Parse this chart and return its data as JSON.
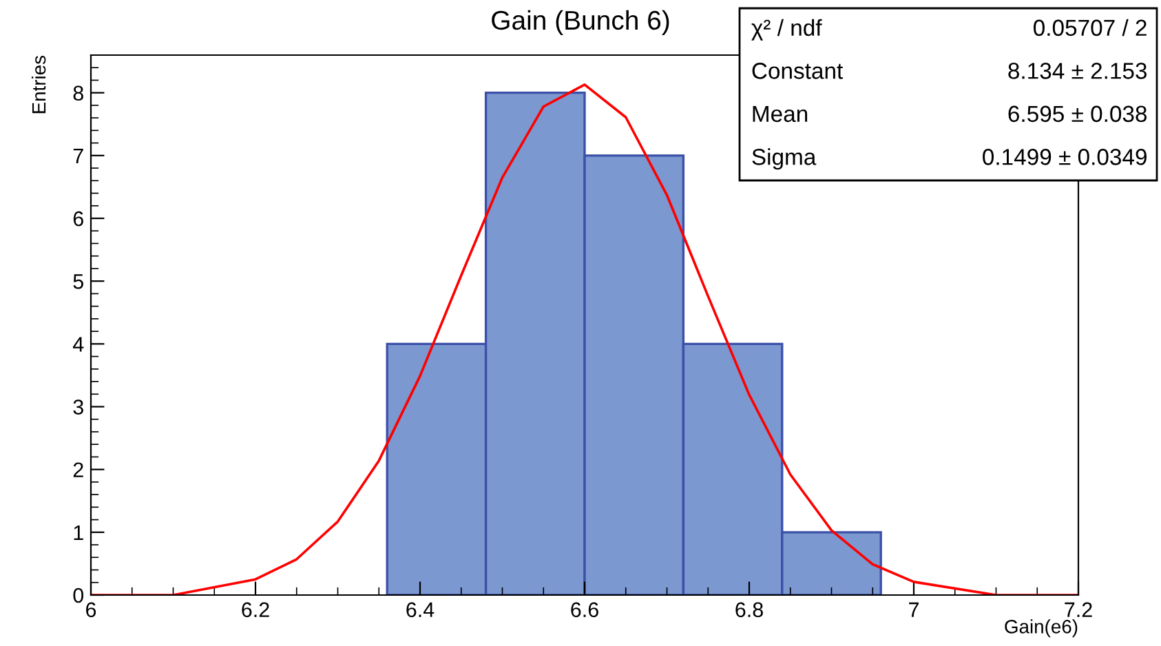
{
  "chart_data": {
    "type": "histogram",
    "title": "Gain (Bunch 6)",
    "xlabel": "Gain(e6)",
    "ylabel": "Entries",
    "bins": [
      6.36,
      6.48,
      6.6,
      6.72,
      6.84,
      6.96
    ],
    "values": [
      4,
      8,
      7,
      4,
      1
    ],
    "color": "#7b98d1",
    "series": [
      {
        "type": "line",
        "color": "#ff0000",
        "x": [
          6.0,
          6.1,
          6.2,
          6.25,
          6.3,
          6.35,
          6.4,
          6.45,
          6.5,
          6.55,
          6.6,
          6.65,
          6.7,
          6.75,
          6.8,
          6.85,
          6.9,
          6.95,
          7.0,
          7.1,
          7.2
        ],
        "values": [
          0,
          0,
          0.25,
          0.57,
          1.17,
          2.14,
          3.49,
          5.09,
          6.65,
          7.78,
          8.13,
          7.61,
          6.37,
          4.76,
          3.19,
          1.92,
          1.03,
          0.49,
          0.21,
          0,
          0
        ]
      }
    ],
    "xlim": [
      6,
      7.2
    ],
    "xticks": [
      6,
      6.2,
      6.4,
      6.6,
      6.8,
      7,
      7.2
    ],
    "ylim": [
      0,
      8.6
    ],
    "yticks": [
      0,
      1,
      2,
      3,
      4,
      5,
      6,
      7,
      8
    ],
    "grid": false,
    "legend": false,
    "annotations": [
      "χ² / ndf",
      "0.05707 / 2",
      "Constant",
      "8.134 ± 2.153",
      "Mean",
      "6.595 ± 0.038",
      "Sigma",
      "0.1499 ± 0.0349"
    ]
  }
}
